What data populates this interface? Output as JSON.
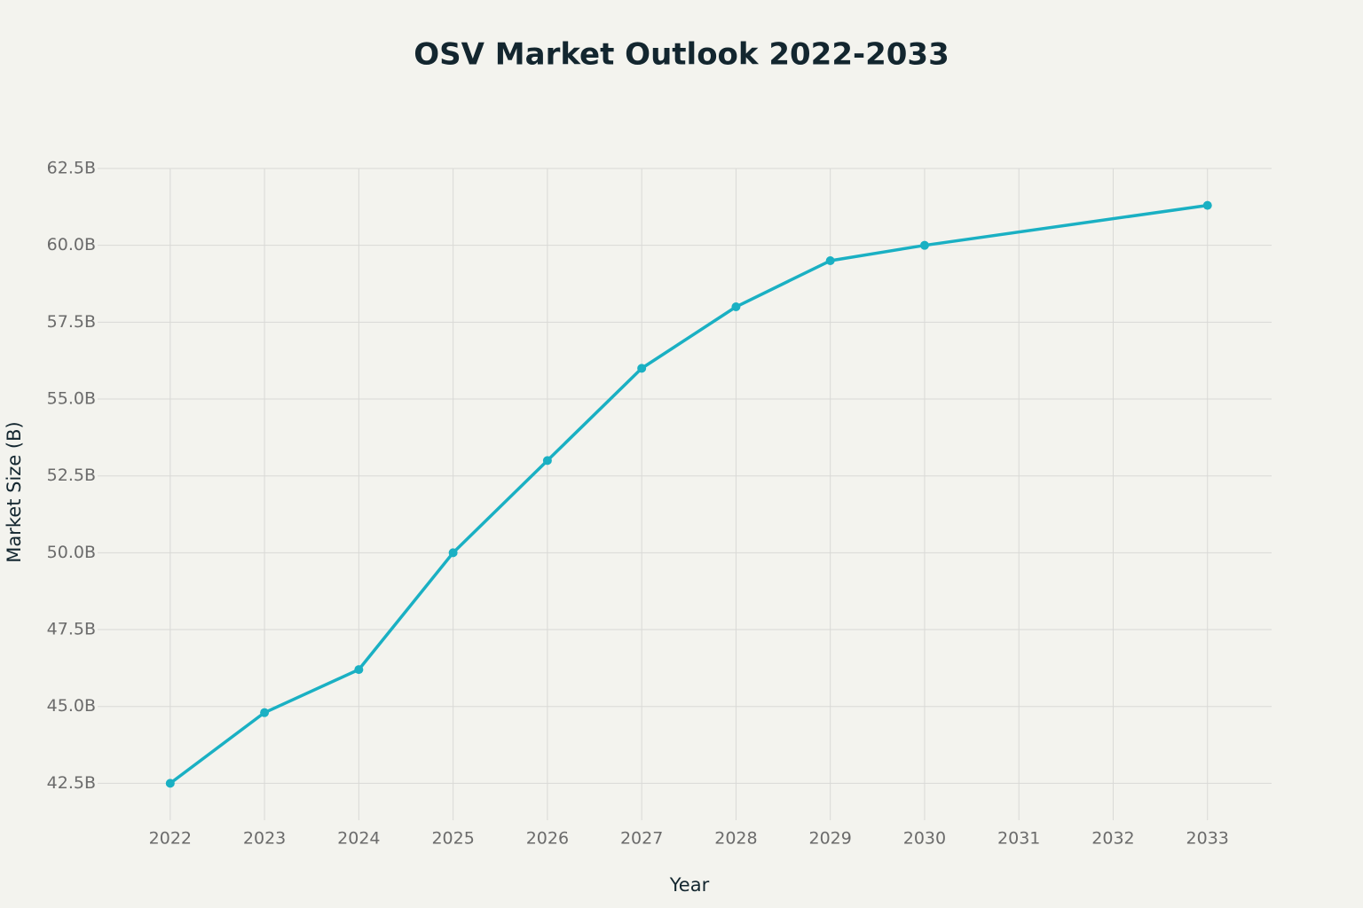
{
  "chart_data": {
    "type": "line",
    "title": "OSV Market Outlook 2022-2033",
    "x_label": "Year",
    "y_label": "Market Size (B)",
    "x": [
      2022,
      2023,
      2024,
      2025,
      2026,
      2027,
      2028,
      2029,
      2030,
      2033
    ],
    "values": [
      42.5,
      44.8,
      46.2,
      50.0,
      53.0,
      56.0,
      58.0,
      59.5,
      60.0,
      61.3
    ],
    "color": "#1ab0c3",
    "xlim": [
      2021.23,
      2033.68
    ],
    "xticks": [
      2022,
      2023,
      2024,
      2025,
      2026,
      2027,
      2028,
      2029,
      2030,
      2031,
      2032,
      2033
    ],
    "ylim": [
      41.3,
      62.5
    ],
    "yticks": [
      {
        "value": 42.5,
        "label": "42.5B"
      },
      {
        "value": 45,
        "label": "45.0B"
      },
      {
        "value": 47.5,
        "label": "47.5B"
      },
      {
        "value": 50,
        "label": "50.0B"
      },
      {
        "value": 52.5,
        "label": "52.5B"
      },
      {
        "value": 55,
        "label": "55.0B"
      },
      {
        "value": 57.5,
        "label": "57.5B"
      },
      {
        "value": 60,
        "label": "60.0B"
      },
      {
        "value": 62.5,
        "label": "62.5B"
      }
    ],
    "grid": true
  }
}
